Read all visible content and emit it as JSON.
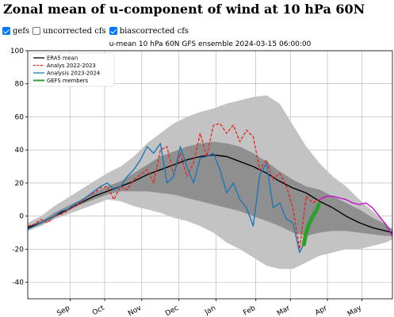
{
  "page": {
    "title": "Zonal mean of u-component of wind at 10 hPa 60N"
  },
  "controls": [
    {
      "label": "gefs",
      "checked": true
    },
    {
      "label": "uncorrected cfs",
      "checked": false
    },
    {
      "label": "biascorrected cfs",
      "checked": true
    }
  ],
  "colors": {
    "era5": "#000000",
    "analys_2022": "#e8231d",
    "analysis_2023": "#1f77b4",
    "gefs": "#2ca02c",
    "cfs": "#cc00cc",
    "spread_outer": "#c3c3c3",
    "spread_inner": "#8f8f8f"
  },
  "chart_data": {
    "type": "line",
    "title": "u-mean 10 hPa 60N GFS ensemble 2024-03-15 06:00:00",
    "xlabel": "",
    "ylabel": "",
    "ylim": [
      -50,
      100
    ],
    "yticks": [
      -40,
      -20,
      0,
      20,
      40,
      60,
      80,
      100
    ],
    "x_range_days": [
      -10,
      265
    ],
    "month_ticks": [
      {
        "label": "Sep",
        "day": 22
      },
      {
        "label": "Oct",
        "day": 48
      },
      {
        "label": "Nov",
        "day": 76
      },
      {
        "label": "Dec",
        "day": 104
      },
      {
        "label": "Jan",
        "day": 132
      },
      {
        "label": "Feb",
        "day": 162
      },
      {
        "label": "Mar",
        "day": 188
      },
      {
        "label": "Apr",
        "day": 216
      },
      {
        "label": "May",
        "day": 242
      }
    ],
    "grid": true,
    "legend_position": "upper left",
    "spread_outer": {
      "x": [
        -10,
        0,
        10,
        20,
        30,
        40,
        50,
        60,
        70,
        80,
        90,
        100,
        110,
        120,
        130,
        140,
        150,
        160,
        170,
        180,
        190,
        200,
        210,
        220,
        230,
        240,
        250,
        260,
        265
      ],
      "upper": [
        -4,
        0,
        6,
        11,
        16,
        21,
        26,
        30,
        36,
        44,
        50,
        56,
        60,
        63,
        65,
        68,
        70,
        72,
        73,
        68,
        55,
        42,
        32,
        24,
        18,
        10,
        3,
        -4,
        -10
      ],
      "lower": [
        -9,
        -6,
        -2,
        1,
        4,
        7,
        10,
        9,
        6,
        4,
        2,
        -1,
        -3,
        -6,
        -10,
        -16,
        -20,
        -25,
        -30,
        -32,
        -32,
        -28,
        -24,
        -22,
        -20,
        -20,
        -18,
        -16,
        -14
      ]
    },
    "spread_inner": {
      "x": [
        -10,
        0,
        10,
        20,
        30,
        40,
        50,
        60,
        70,
        80,
        90,
        100,
        110,
        120,
        130,
        140,
        150,
        160,
        170,
        180,
        190,
        200,
        210,
        220,
        230,
        240,
        250,
        260,
        265
      ],
      "upper": [
        -6,
        -3,
        2,
        6,
        10,
        14,
        18,
        21,
        26,
        31,
        36,
        39,
        42,
        44,
        45,
        44,
        42,
        38,
        33,
        27,
        22,
        18,
        16,
        12,
        8,
        4,
        -1,
        -5,
        -8
      ],
      "lower": [
        -8,
        -5,
        -1,
        3,
        7,
        10,
        13,
        15,
        15,
        15,
        14,
        13,
        11,
        9,
        7,
        5,
        3,
        0,
        -3,
        -6,
        -10,
        -12,
        -10,
        -9,
        -9,
        -10,
        -11,
        -12,
        -12
      ]
    },
    "series": [
      {
        "name": "ERA5 mean",
        "x": [
          -10,
          0,
          10,
          20,
          30,
          40,
          50,
          60,
          70,
          80,
          90,
          100,
          110,
          120,
          130,
          140,
          150,
          160,
          170,
          180,
          190,
          200,
          210,
          220,
          230,
          240,
          250,
          260,
          265
        ],
        "values": [
          -7,
          -4,
          0,
          4,
          8,
          12,
          15,
          18,
          21,
          25,
          28,
          31,
          34,
          36,
          37,
          36,
          33,
          30,
          26,
          21,
          17,
          14,
          9,
          5,
          0,
          -4,
          -7,
          -9,
          -10
        ]
      },
      {
        "name": "Analys 2022-2023",
        "x": [
          -10,
          -5,
          0,
          5,
          10,
          15,
          20,
          25,
          30,
          35,
          40,
          45,
          50,
          55,
          60,
          65,
          70,
          75,
          80,
          85,
          90,
          95,
          100,
          105,
          110,
          115,
          120,
          125,
          130,
          135,
          140,
          145,
          150,
          155,
          160,
          165,
          170,
          175,
          180,
          185,
          190,
          195,
          200,
          205,
          210,
          215
        ],
        "values": [
          -6,
          -5,
          -2,
          -4,
          0,
          1,
          3,
          6,
          8,
          12,
          14,
          17,
          18,
          10,
          18,
          16,
          22,
          25,
          28,
          20,
          40,
          42,
          25,
          38,
          24,
          32,
          50,
          36,
          55,
          56,
          50,
          55,
          45,
          52,
          48,
          28,
          34,
          22,
          26,
          18,
          5,
          -20,
          12,
          8,
          10,
          12
        ]
      },
      {
        "name": "Analysis 2023-2024",
        "x": [
          -10,
          -5,
          0,
          5,
          10,
          15,
          20,
          25,
          30,
          35,
          40,
          45,
          50,
          55,
          60,
          65,
          70,
          75,
          80,
          85,
          90,
          95,
          100,
          105,
          110,
          115,
          120,
          125,
          130,
          135,
          140,
          145,
          150,
          155,
          160,
          165,
          170,
          175,
          180,
          185,
          190,
          195,
          200
        ],
        "values": [
          -8,
          -6,
          -4,
          -2,
          0,
          3,
          4,
          7,
          9,
          12,
          15,
          18,
          20,
          16,
          18,
          24,
          28,
          34,
          42,
          38,
          44,
          20,
          24,
          42,
          30,
          20,
          35,
          36,
          38,
          28,
          14,
          20,
          10,
          5,
          -6,
          25,
          32,
          5,
          8,
          -2,
          -4,
          -22,
          -14
        ]
      },
      {
        "name": "GEFS members",
        "x": [
          198,
          200,
          202,
          205,
          208,
          210
        ],
        "values": [
          -18,
          -10,
          -5,
          0,
          4,
          8
        ]
      },
      {
        "name": "",
        "x": [
          210,
          215,
          220,
          225,
          230,
          235,
          240,
          245,
          250,
          255,
          260,
          265
        ],
        "values": [
          10,
          12,
          12,
          11,
          10,
          8,
          7,
          8,
          5,
          0,
          -5,
          -12
        ]
      }
    ]
  }
}
